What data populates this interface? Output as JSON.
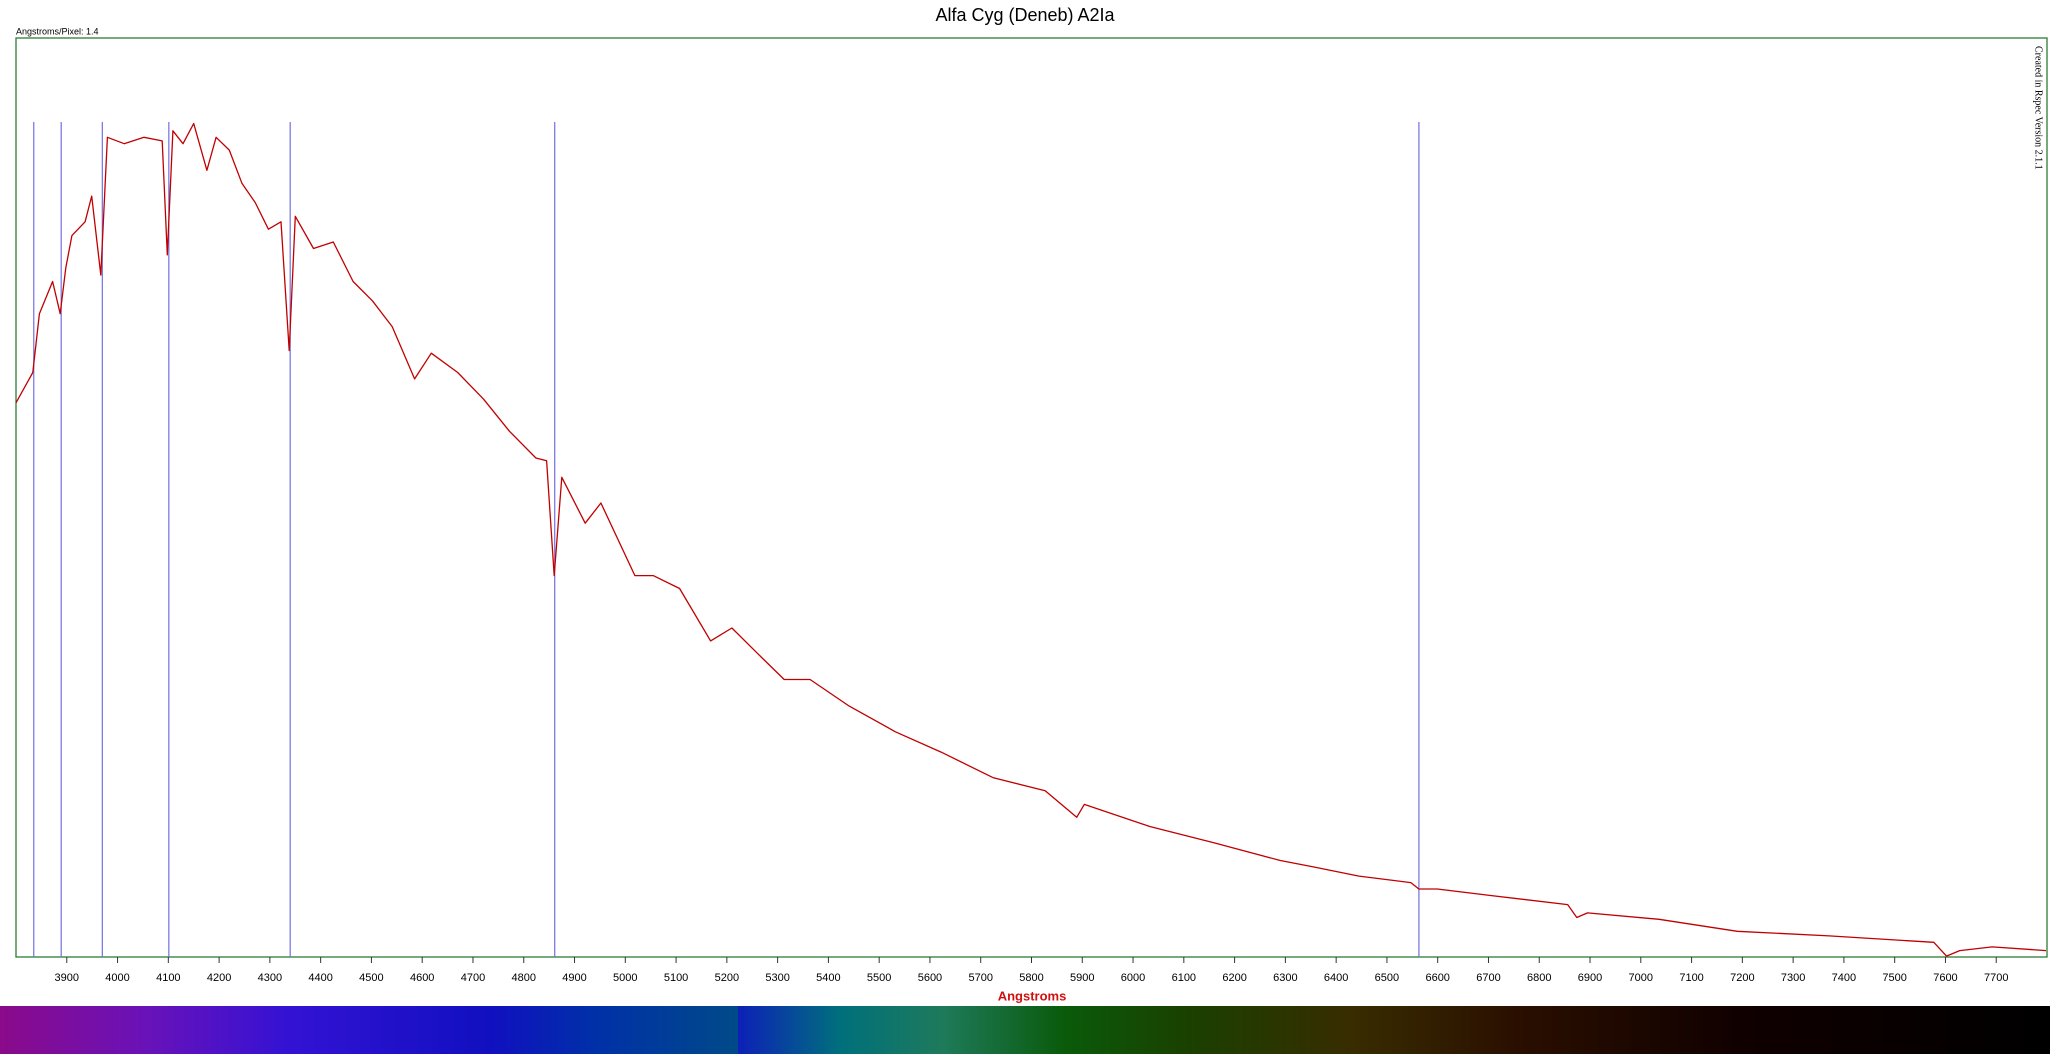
{
  "chart_data": {
    "type": "line",
    "title": "Alfa Cyg (Deneb) A2Ia",
    "annotation": "Angstroms/Pixel: 1.4",
    "watermark": "Created in Rspec Version 2.1.1",
    "x_label": "Angstroms",
    "color": "#c00000",
    "x": [
      3800,
      3833,
      3846,
      3872,
      3887,
      3898,
      3910,
      3936,
      3949,
      3967,
      3980,
      4013,
      4052,
      4088,
      4098,
      4109,
      4129,
      4150,
      4176,
      4194,
      4220,
      4245,
      4271,
      4297,
      4322,
      4338,
      4350,
      4386,
      4425,
      4464,
      4502,
      4541,
      4585,
      4618,
      4670,
      4721,
      4772,
      4824,
      4845,
      4860,
      4875,
      4921,
      4952,
      5019,
      5055,
      5107,
      5168,
      5210,
      5261,
      5313,
      5364,
      5441,
      5532,
      5622,
      5725,
      5827,
      5889,
      5904,
      6033,
      6161,
      6290,
      6355,
      6445,
      6547,
      6563,
      6599,
      6702,
      6856,
      6874,
      6895,
      7036,
      7190,
      7371,
      7577,
      7602,
      7628,
      7692,
      7798
    ],
    "values": [
      0.603,
      0.636,
      0.7,
      0.735,
      0.7,
      0.75,
      0.785,
      0.8,
      0.828,
      0.742,
      0.892,
      0.885,
      0.892,
      0.888,
      0.764,
      0.899,
      0.885,
      0.907,
      0.856,
      0.892,
      0.878,
      0.842,
      0.821,
      0.792,
      0.8,
      0.66,
      0.806,
      0.771,
      0.778,
      0.735,
      0.714,
      0.686,
      0.629,
      0.657,
      0.636,
      0.607,
      0.572,
      0.543,
      0.54,
      0.415,
      0.522,
      0.472,
      0.494,
      0.415,
      0.415,
      0.401,
      0.344,
      0.358,
      0.33,
      0.302,
      0.302,
      0.273,
      0.245,
      0.223,
      0.195,
      0.181,
      0.152,
      0.166,
      0.142,
      0.124,
      0.105,
      0.098,
      0.088,
      0.081,
      0.074,
      0.074,
      0.067,
      0.057,
      0.043,
      0.048,
      0.041,
      0.028,
      0.023,
      0.016,
      0.001,
      0.007,
      0.011,
      0.007
    ],
    "reference_lines": [
      3835,
      3889,
      3970,
      4101,
      4340,
      4861,
      6563
    ],
    "reference_color": "#7070e0",
    "xlim": [
      3800,
      7800
    ],
    "ylim": [
      0,
      1
    ],
    "xticks": [
      3900,
      4000,
      4100,
      4200,
      4300,
      4400,
      4500,
      4600,
      4700,
      4800,
      4900,
      5000,
      5100,
      5200,
      5300,
      5400,
      5500,
      5600,
      5700,
      5800,
      5900,
      6000,
      6100,
      6200,
      6300,
      6400,
      6500,
      6600,
      6700,
      6800,
      6900,
      7000,
      7100,
      7200,
      7300,
      7400,
      7500,
      7600,
      7700
    ]
  }
}
